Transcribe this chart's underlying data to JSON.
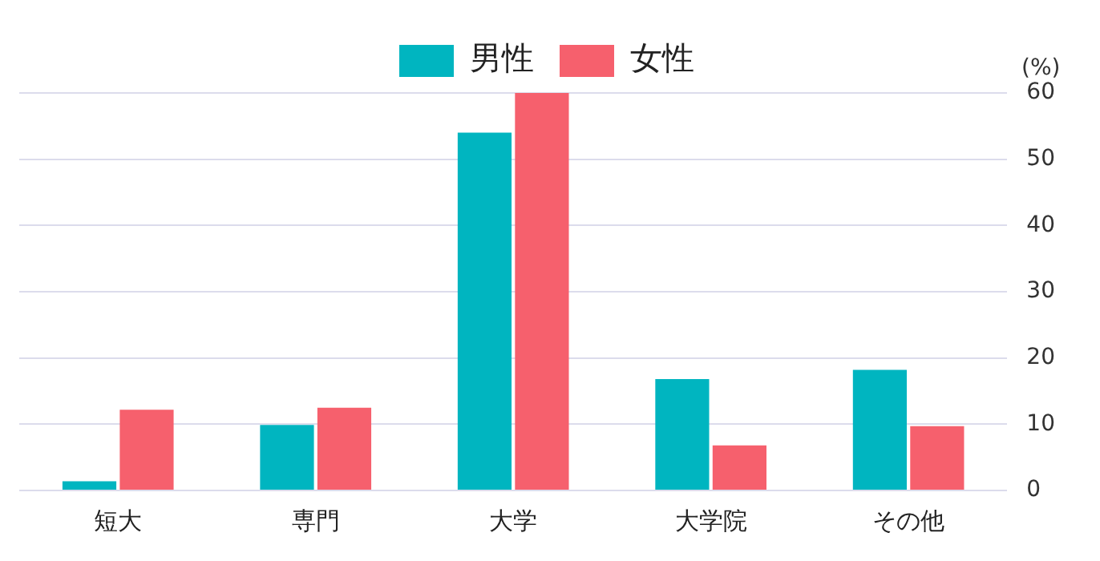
{
  "chart_data": {
    "type": "bar",
    "ylabel": "(%)",
    "categories": [
      "短大",
      "専門",
      "大学",
      "大学院",
      "その他"
    ],
    "series": [
      {
        "name": "男性",
        "color": "#00b5c0",
        "values": [
          1.4,
          9.9,
          54,
          16.8,
          18.2
        ]
      },
      {
        "name": "女性",
        "color": "#f6606d",
        "values": [
          12.2,
          12.5,
          60,
          6.8,
          9.7
        ]
      }
    ],
    "ylim": [
      0,
      60
    ],
    "yticks": [
      0,
      10,
      20,
      30,
      40,
      50,
      60
    ],
    "grid": "y",
    "legend": "top"
  }
}
